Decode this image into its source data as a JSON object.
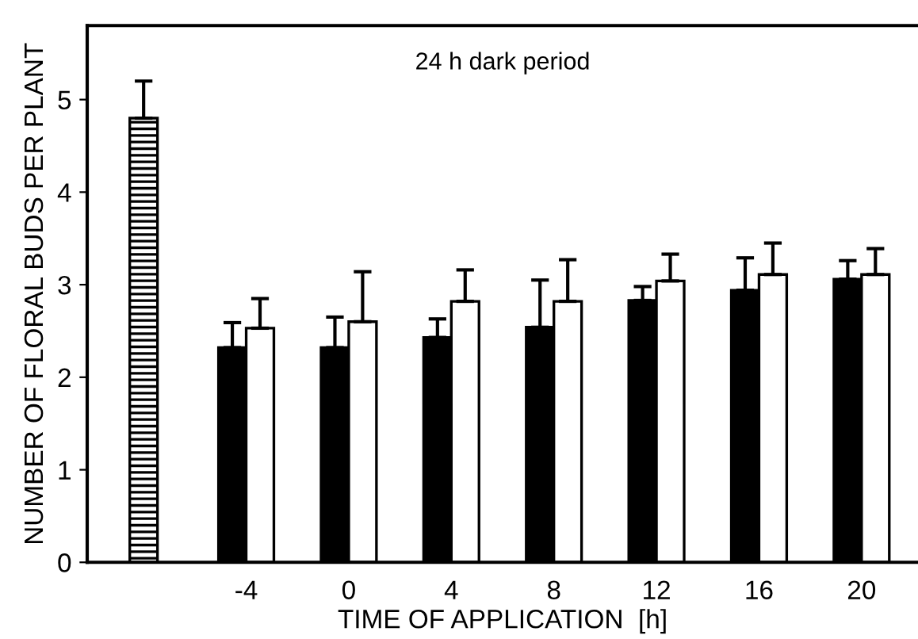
{
  "chart_data": {
    "type": "bar",
    "xlabel": "TIME OF APPLICATION  [h]",
    "ylabel": "NUMBER OF FLORAL BUDS PER PLANT",
    "annotations": [
      "24 h dark period"
    ],
    "categories": [
      null,
      "-4",
      "0",
      "4",
      "8",
      "12",
      "16",
      "20"
    ],
    "ylim": [
      0,
      5.8
    ],
    "yticks": [
      0,
      1,
      2,
      3,
      4,
      5
    ],
    "grid": false,
    "legend": false,
    "series": [
      {
        "color": "#000000",
        "values": [
          4.8,
          null,
          null,
          null,
          null,
          null,
          null,
          null
        ],
        "errors": [
          [
            4.8,
            5.2
          ],
          null,
          null,
          null,
          null,
          null,
          null,
          null
        ]
      },
      {
        "color": "#000000",
        "values": [
          null,
          2.32,
          2.32,
          2.43,
          2.54,
          2.83,
          2.94,
          3.06
        ],
        "errors": [
          null,
          [
            2.32,
            2.59
          ],
          [
            2.32,
            2.65
          ],
          [
            2.43,
            2.63
          ],
          [
            2.54,
            3.05
          ],
          [
            2.83,
            2.98
          ],
          [
            2.94,
            3.29
          ],
          [
            3.06,
            3.26
          ]
        ]
      },
      {
        "color": "#ffffff",
        "values": [
          null,
          2.53,
          2.6,
          2.82,
          2.82,
          3.04,
          3.11,
          3.11
        ],
        "errors": [
          null,
          [
            2.53,
            2.85
          ],
          [
            2.6,
            3.14
          ],
          [
            2.82,
            3.16
          ],
          [
            2.82,
            3.27
          ],
          [
            3.04,
            3.33
          ],
          [
            3.11,
            3.45
          ],
          [
            3.11,
            3.39
          ]
        ]
      }
    ]
  }
}
